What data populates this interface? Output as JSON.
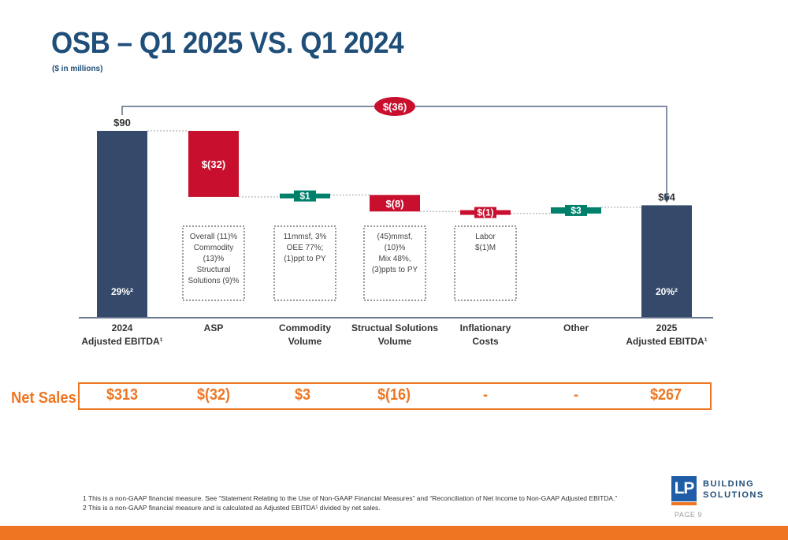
{
  "title": "OSB – Q1 2025 VS. Q1 2024",
  "subtitle": "($ in millions)",
  "colors": {
    "navy": "#354a6b",
    "red": "#c8102e",
    "teal": "#00806b",
    "orange": "#ee7623",
    "title_blue": "#1f4e79"
  },
  "chart_data": {
    "type": "bar",
    "subtype": "waterfall",
    "categories": [
      [
        "2024",
        "Adjusted EBITDA¹"
      ],
      [
        "ASP"
      ],
      [
        "Commodity",
        "Volume"
      ],
      [
        "Structual Solutions",
        "Volume"
      ],
      [
        "Inflationary",
        "Costs"
      ],
      [
        "Other"
      ],
      [
        "2025",
        "Adjusted EBITDA¹"
      ]
    ],
    "steps": [
      {
        "kind": "total",
        "value": 90,
        "label": "$90",
        "margin": "29%²"
      },
      {
        "kind": "delta",
        "value": -32,
        "label": "$(32)"
      },
      {
        "kind": "delta",
        "value": 1,
        "label": "$1"
      },
      {
        "kind": "delta",
        "value": -8,
        "label": "$(8)"
      },
      {
        "kind": "delta",
        "value": -1,
        "label": "$(1)"
      },
      {
        "kind": "delta",
        "value": 3,
        "label": "$3"
      },
      {
        "kind": "total",
        "value": 54,
        "label": "$54",
        "margin": "20%²"
      }
    ],
    "overall_change": {
      "value": -36,
      "label": "$(36)"
    },
    "notes": [
      null,
      [
        "Overall (11)%",
        "Commodity",
        "(13)%",
        "Structural",
        "Solutions (9)%"
      ],
      [
        "11mmsf, 3%",
        "OEE 77%;",
        "(1)ppt to PY"
      ],
      [
        "(45)mmsf,",
        "(10)%",
        "Mix 48%,",
        "(3)ppts to PY"
      ],
      [
        "Labor",
        "$(1)M"
      ],
      null,
      null
    ],
    "ylim": [
      0,
      90
    ]
  },
  "net_sales": {
    "label": "Net Sales",
    "values": [
      "$313",
      "$(32)",
      "$3",
      "$(16)",
      "-",
      "-",
      "$267"
    ]
  },
  "footnotes": [
    "1  This is a non-GAAP financial measure. See “Statement Relating to the Use of Non-GAAP Financial Measures” and “Reconciliation of Net Income to Non-GAAP Adjusted EBITDA.”",
    "2  This is a non-GAAP financial measure and is calculated as Adjusted EBITDA¹ divided by net sales."
  ],
  "logo": {
    "mark": "LP",
    "line1": "BUILDING",
    "line2": "SOLUTIONS"
  },
  "page": {
    "label": "PAGE",
    "number": "9"
  }
}
